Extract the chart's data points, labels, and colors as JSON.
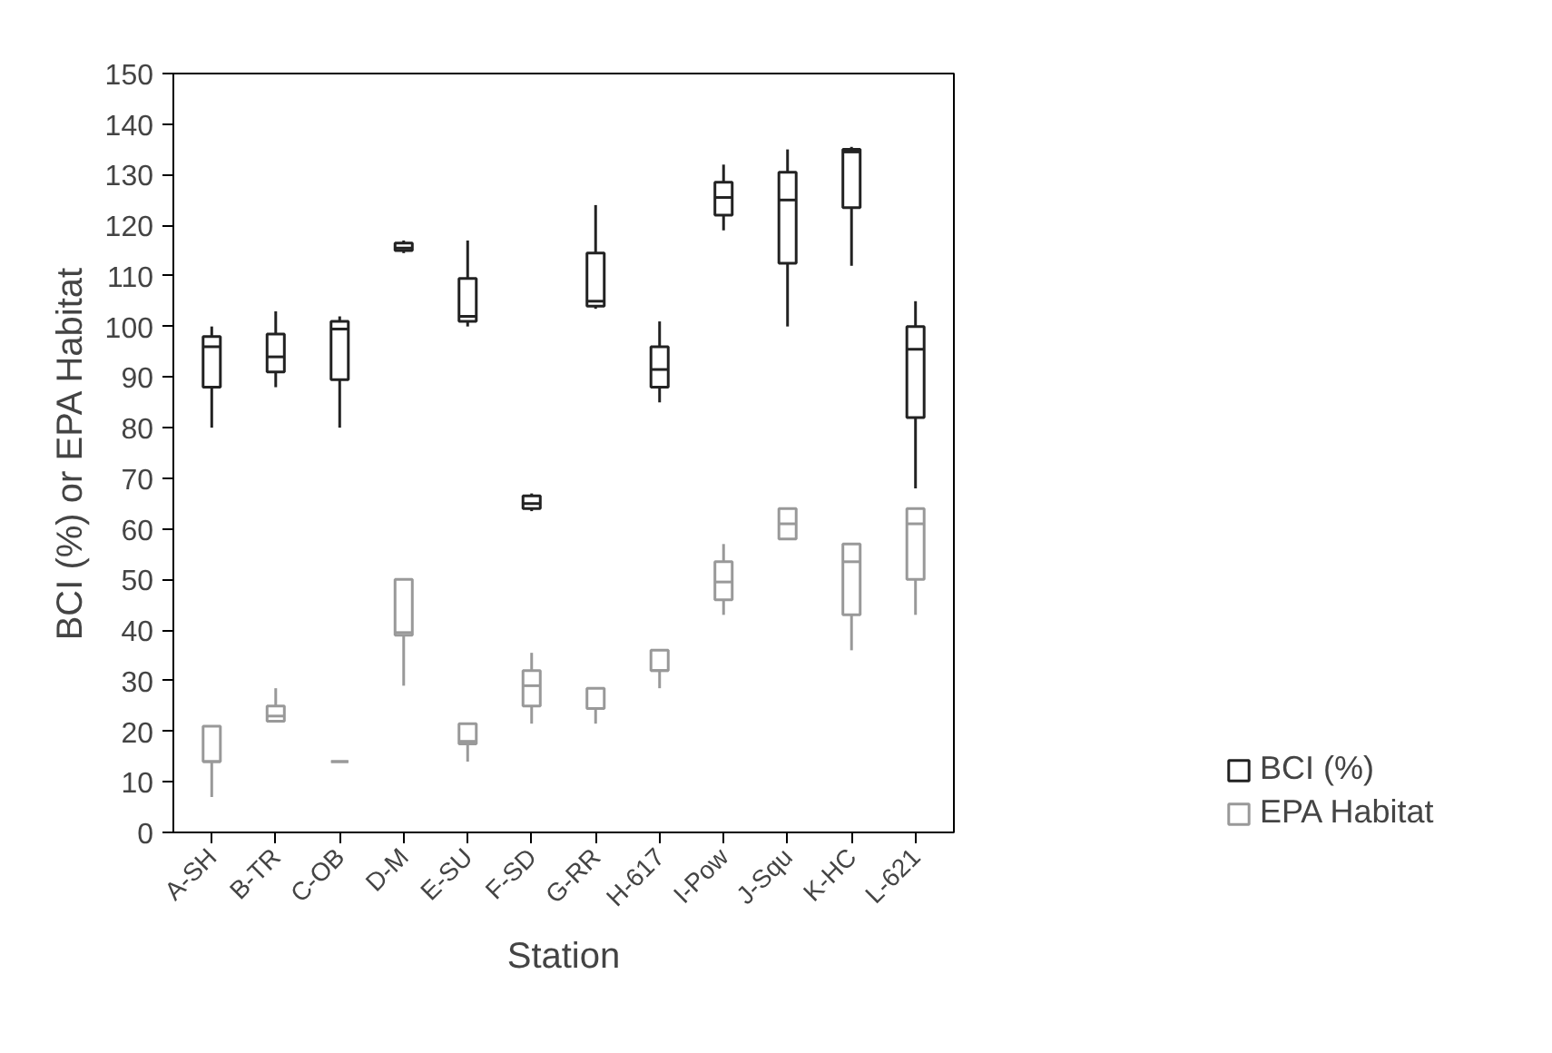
{
  "chart_data": {
    "type": "box",
    "xlabel": "Station",
    "ylabel": "BCI (%) or EPA Habitat",
    "categories": [
      "A-SH",
      "B-TR",
      "C-OB",
      "D-M",
      "E-SU",
      "F-SD",
      "G-RR",
      "H-617",
      "I-Pow",
      "J-Squ",
      "K-HC",
      "L-621"
    ],
    "ylim": [
      0,
      150
    ],
    "yticks": [
      0,
      10,
      20,
      30,
      40,
      50,
      60,
      70,
      80,
      90,
      100,
      110,
      120,
      130,
      140,
      150
    ],
    "legend": "right",
    "grid": false,
    "series": [
      {
        "name": "BCI (%)",
        "color": "#222222",
        "boxes": [
          {
            "low": 80,
            "q1": 88,
            "median": 96,
            "q3": 98,
            "high": 100
          },
          {
            "low": 88,
            "q1": 91,
            "median": 94,
            "q3": 98.5,
            "high": 103
          },
          {
            "low": 80,
            "q1": 89.5,
            "median": 99.5,
            "q3": 101,
            "high": 102
          },
          {
            "low": 114.5,
            "q1": 115,
            "median": 115.5,
            "q3": 116.5,
            "high": 117
          },
          {
            "low": 100,
            "q1": 101,
            "median": 102,
            "q3": 109.5,
            "high": 117
          },
          {
            "low": 63.5,
            "q1": 64,
            "median": 65,
            "q3": 66.5,
            "high": 67
          },
          {
            "low": 103.5,
            "q1": 104,
            "median": 105,
            "q3": 114.5,
            "high": 124
          },
          {
            "low": 85,
            "q1": 88,
            "median": 91.5,
            "q3": 96,
            "high": 101
          },
          {
            "low": 119,
            "q1": 122,
            "median": 125.5,
            "q3": 128.5,
            "high": 132
          },
          {
            "low": 100,
            "q1": 112.5,
            "median": 125,
            "q3": 130.5,
            "high": 135
          },
          {
            "low": 112,
            "q1": 123.5,
            "median": 134.5,
            "q3": 135,
            "high": 135.5
          },
          {
            "low": 68,
            "q1": 82,
            "median": 95.5,
            "q3": 100,
            "high": 105
          }
        ]
      },
      {
        "name": "EPA Habitat",
        "color": "#999999",
        "boxes": [
          {
            "low": 7,
            "q1": 14,
            "median": 14,
            "q3": 21,
            "high": 21
          },
          {
            "low": 22,
            "q1": 22,
            "median": 23,
            "q3": 25,
            "high": 28.5
          },
          {
            "low": 14,
            "q1": 14,
            "median": 14,
            "q3": 14,
            "high": 14
          },
          {
            "low": 29,
            "q1": 39,
            "median": 39.5,
            "q3": 50,
            "high": 50
          },
          {
            "low": 14,
            "q1": 17.5,
            "median": 18,
            "q3": 21.5,
            "high": 21.5
          },
          {
            "low": 21.5,
            "q1": 25,
            "median": 29,
            "q3": 32,
            "high": 35.5
          },
          {
            "low": 21.5,
            "q1": 24.5,
            "median": 24.5,
            "q3": 28.5,
            "high": 28.5
          },
          {
            "low": 28.5,
            "q1": 32,
            "median": 32,
            "q3": 36,
            "high": 36
          },
          {
            "low": 43,
            "q1": 46,
            "median": 49.5,
            "q3": 53.5,
            "high": 57
          },
          {
            "low": 58,
            "q1": 58,
            "median": 61,
            "q3": 64,
            "high": 64
          },
          {
            "low": 36,
            "q1": 43,
            "median": 53.5,
            "q3": 57,
            "high": 57
          },
          {
            "low": 43,
            "q1": 50,
            "median": 61,
            "q3": 64,
            "high": 64
          }
        ]
      }
    ]
  }
}
